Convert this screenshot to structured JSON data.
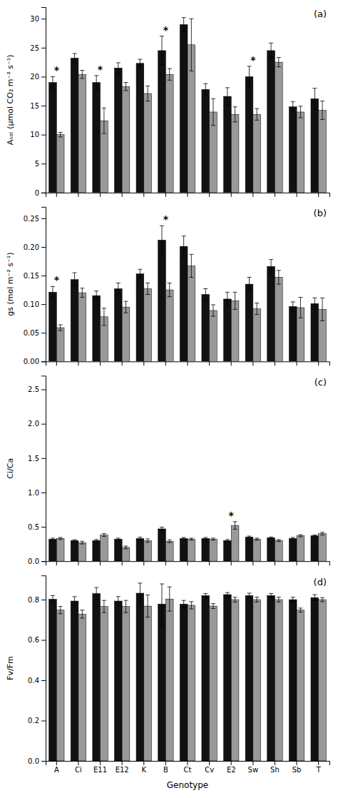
{
  "chart_data": [
    {
      "type": "bar",
      "title": "(a)",
      "ylabel": "Aₛₐₜ (μmol CO₂ m⁻² s⁻¹)",
      "categories": [
        "A",
        "Ci",
        "E11",
        "E12",
        "K",
        "B",
        "Ct",
        "Cv",
        "E2",
        "Sw",
        "Sh",
        "Sb",
        "T"
      ],
      "series": [
        {
          "color": "#111111",
          "values": [
            19.0,
            23.2,
            19.0,
            21.5,
            22.3,
            24.5,
            29.0,
            17.8,
            16.6,
            20.0,
            24.5,
            14.8,
            16.2
          ],
          "errors": [
            1.0,
            0.8,
            1.2,
            0.9,
            0.7,
            2.5,
            1.2,
            1.0,
            1.5,
            1.8,
            1.3,
            0.9,
            1.8
          ]
        },
        {
          "color": "#999999",
          "values": [
            10.0,
            20.4,
            12.4,
            18.3,
            17.1,
            20.4,
            25.5,
            13.9,
            13.5,
            13.5,
            22.5,
            13.9,
            14.2
          ],
          "errors": [
            0.4,
            0.7,
            2.2,
            0.7,
            1.3,
            1.0,
            4.5,
            2.3,
            1.3,
            1.0,
            0.8,
            1.0,
            1.6
          ]
        }
      ],
      "annotations": [
        {
          "text": "*",
          "category": "A"
        },
        {
          "text": "*",
          "category": "E11"
        },
        {
          "text": "*",
          "category": "B"
        },
        {
          "text": "*",
          "category": "Sw"
        }
      ],
      "ylim": [
        0,
        32
      ],
      "yticks": [
        0,
        5,
        10,
        15,
        20,
        25,
        30
      ],
      "grid": false,
      "tick_labels": "y"
    },
    {
      "type": "bar",
      "title": "(b)",
      "ylabel": "gs (mol m⁻² s⁻¹)",
      "categories": [
        "A",
        "Ci",
        "E11",
        "E12",
        "K",
        "B",
        "Ct",
        "Cv",
        "E2",
        "Sw",
        "Sh",
        "Sb",
        "T"
      ],
      "series": [
        {
          "color": "#111111",
          "values": [
            0.121,
            0.143,
            0.115,
            0.127,
            0.153,
            0.212,
            0.201,
            0.117,
            0.109,
            0.135,
            0.166,
            0.096,
            0.101
          ],
          "errors": [
            0.01,
            0.012,
            0.008,
            0.01,
            0.008,
            0.025,
            0.018,
            0.01,
            0.012,
            0.012,
            0.012,
            0.008,
            0.01
          ]
        },
        {
          "color": "#999999",
          "values": [
            0.059,
            0.12,
            0.078,
            0.095,
            0.127,
            0.125,
            0.167,
            0.089,
            0.106,
            0.092,
            0.147,
            0.094,
            0.091
          ],
          "errors": [
            0.005,
            0.008,
            0.015,
            0.01,
            0.01,
            0.012,
            0.02,
            0.01,
            0.015,
            0.01,
            0.012,
            0.018,
            0.02
          ]
        }
      ],
      "annotations": [
        {
          "text": "*",
          "category": "A"
        },
        {
          "text": "*",
          "category": "B"
        }
      ],
      "ylim": [
        0.0,
        0.27
      ],
      "yticks": [
        {
          "value": 0,
          "label": "0.00"
        },
        0.05,
        {
          "value": 0.1,
          "label": "0.10"
        },
        0.15,
        {
          "value": 0.2,
          "label": "0.20"
        },
        0.25
      ],
      "grid": false,
      "tick_labels": "y"
    },
    {
      "type": "bar",
      "title": "(c)",
      "ylabel": "Ci/Ca",
      "categories": [
        "A",
        "Ci",
        "E11",
        "E12",
        "K",
        "B",
        "Ct",
        "Cv",
        "E2",
        "Sw",
        "Sh",
        "Sb",
        "T"
      ],
      "series": [
        {
          "color": "#111111",
          "values": [
            0.32,
            0.3,
            0.3,
            0.32,
            0.33,
            0.47,
            0.33,
            0.33,
            0.3,
            0.35,
            0.34,
            0.33,
            0.37
          ],
          "errors": [
            0.015,
            0.012,
            0.015,
            0.015,
            0.02,
            0.025,
            0.015,
            0.015,
            0.015,
            0.015,
            0.012,
            0.015,
            0.012
          ]
        },
        {
          "color": "#999999",
          "values": [
            0.33,
            0.27,
            0.38,
            0.2,
            0.3,
            0.29,
            0.32,
            0.32,
            0.52,
            0.32,
            0.3,
            0.37,
            0.4
          ],
          "errors": [
            0.015,
            0.02,
            0.02,
            0.02,
            0.025,
            0.02,
            0.015,
            0.015,
            0.055,
            0.015,
            0.015,
            0.015,
            0.02
          ]
        }
      ],
      "annotations": [
        {
          "text": "*",
          "category": "E2"
        }
      ],
      "ylim": [
        0.0,
        2.7
      ],
      "yticks": [
        {
          "value": 0,
          "label": "0.0"
        },
        0.5,
        {
          "value": 1,
          "label": "1.0"
        },
        1.5,
        {
          "value": 2,
          "label": "2.0"
        },
        2.5
      ],
      "grid": false,
      "tick_labels": "y"
    },
    {
      "type": "bar",
      "title": "(d)",
      "ylabel": "Fv/Fm",
      "xlabel": "Genotype",
      "categories": [
        "A",
        "Ci",
        "E11",
        "E12",
        "K",
        "B",
        "Ct",
        "Cv",
        "E2",
        "Sw",
        "Sh",
        "Sb",
        "T"
      ],
      "series": [
        {
          "color": "#111111",
          "values": [
            0.802,
            0.793,
            0.83,
            0.793,
            0.832,
            0.778,
            0.778,
            0.82,
            0.825,
            0.82,
            0.82,
            0.8,
            0.81
          ],
          "errors": [
            0.018,
            0.022,
            0.03,
            0.022,
            0.05,
            0.1,
            0.018,
            0.01,
            0.01,
            0.012,
            0.01,
            0.012,
            0.015
          ]
        },
        {
          "color": "#999999",
          "values": [
            0.748,
            0.728,
            0.766,
            0.766,
            0.768,
            0.803,
            0.772,
            0.768,
            0.8,
            0.8,
            0.8,
            0.748,
            0.8
          ],
          "errors": [
            0.018,
            0.02,
            0.03,
            0.03,
            0.055,
            0.06,
            0.018,
            0.012,
            0.012,
            0.012,
            0.012,
            0.01,
            0.01
          ]
        }
      ],
      "ylim": [
        0.0,
        0.92
      ],
      "yticks": [
        {
          "value": 0,
          "label": "0.0"
        },
        0.2,
        0.4,
        0.6,
        0.8
      ],
      "grid": false
    }
  ]
}
